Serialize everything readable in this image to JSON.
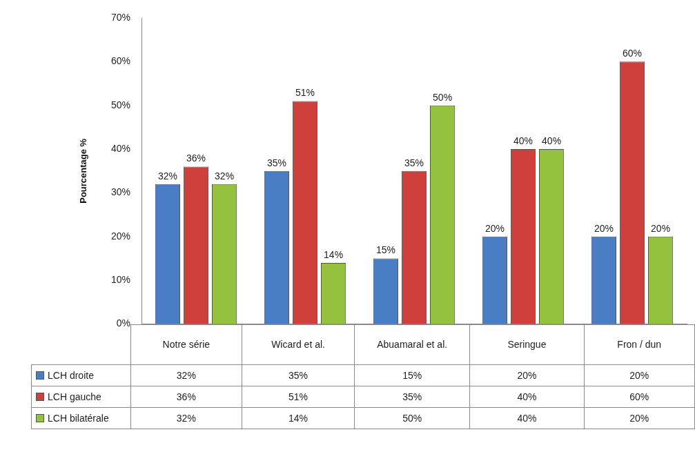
{
  "chart_data": {
    "type": "bar",
    "ylabel": "Pourcentage %",
    "categories": [
      "Notre série",
      "Wicard et al.",
      "Abuamaral et al.",
      "Seringue",
      "Fron / dun"
    ],
    "series": [
      {
        "name": "LCH droite",
        "color": "#4a7ec4",
        "values": [
          32,
          35,
          15,
          20,
          20
        ],
        "value_labels": [
          "32%",
          "35%",
          "15%",
          "20%",
          "20%"
        ]
      },
      {
        "name": "LCH gauche",
        "color": "#cf3f3c",
        "values": [
          36,
          51,
          35,
          40,
          60
        ],
        "value_labels": [
          "36%",
          "51%",
          "35%",
          "40%",
          "60%"
        ]
      },
      {
        "name": "LCH bilatérale",
        "color": "#94c23f",
        "values": [
          32,
          14,
          50,
          40,
          20
        ],
        "value_labels": [
          "32%",
          "14%",
          "50%",
          "40%",
          "20%"
        ]
      }
    ],
    "ylim": [
      0,
      70
    ],
    "yticks": [
      {
        "value": 0,
        "label": "0%"
      },
      {
        "value": 10,
        "label": "10%"
      },
      {
        "value": 20,
        "label": "20%"
      },
      {
        "value": 30,
        "label": "30%"
      },
      {
        "value": 40,
        "label": "40%"
      },
      {
        "value": 50,
        "label": "50%"
      },
      {
        "value": 60,
        "label": "60%"
      },
      {
        "value": 70,
        "label": "70%"
      }
    ],
    "grid": false,
    "legend": "bottom"
  }
}
